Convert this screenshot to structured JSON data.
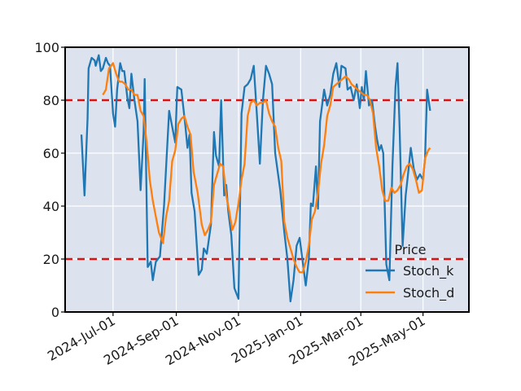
{
  "chart_data": {
    "type": "line",
    "title": "",
    "xlabel": "",
    "ylabel": "",
    "x_range": [
      "2024-05-15",
      "2025-06-15"
    ],
    "ylim": [
      0,
      100
    ],
    "y_ticks": [
      0,
      20,
      40,
      60,
      80,
      100
    ],
    "x_ticks": [
      {
        "date": "2024-07-01",
        "label": "2024-Jul-01"
      },
      {
        "date": "2024-09-01",
        "label": "2024-Sep-01"
      },
      {
        "date": "2024-11-01",
        "label": "2024-Nov-01"
      },
      {
        "date": "2025-01-01",
        "label": "2025-Jan-01"
      },
      {
        "date": "2025-03-01",
        "label": "2025-Mar-01"
      },
      {
        "date": "2025-05-01",
        "label": "2025-May-01"
      }
    ],
    "grid": true,
    "plot_background": "#dce3ee",
    "reference_lines": [
      {
        "y": 80,
        "color": "#e01010",
        "style": "dashed"
      },
      {
        "y": 20,
        "color": "#e01010",
        "style": "dashed"
      }
    ],
    "legend": {
      "title": "Price",
      "placement": "lower-right"
    },
    "series": [
      {
        "name": "Stoch_k",
        "color": "#1f77b4",
        "points": [
          [
            "2024-05-31",
            67
          ],
          [
            "2024-06-03",
            44
          ],
          [
            "2024-06-06",
            73
          ],
          [
            "2024-06-07",
            92
          ],
          [
            "2024-06-10",
            96
          ],
          [
            "2024-06-13",
            95
          ],
          [
            "2024-06-14",
            93
          ],
          [
            "2024-06-17",
            97
          ],
          [
            "2024-06-19",
            91
          ],
          [
            "2024-06-21",
            92
          ],
          [
            "2024-06-24",
            96
          ],
          [
            "2024-06-26",
            94
          ],
          [
            "2024-06-28",
            93
          ],
          [
            "2024-07-01",
            75
          ],
          [
            "2024-07-03",
            70
          ],
          [
            "2024-07-05",
            84
          ],
          [
            "2024-07-08",
            94
          ],
          [
            "2024-07-10",
            91
          ],
          [
            "2024-07-12",
            91
          ],
          [
            "2024-07-15",
            81
          ],
          [
            "2024-07-17",
            77
          ],
          [
            "2024-07-19",
            90
          ],
          [
            "2024-07-22",
            80
          ],
          [
            "2024-07-25",
            72
          ],
          [
            "2024-07-28",
            46
          ],
          [
            "2024-07-31",
            68
          ],
          [
            "2024-08-01",
            88
          ],
          [
            "2024-08-04",
            17
          ],
          [
            "2024-08-07",
            19
          ],
          [
            "2024-08-09",
            12
          ],
          [
            "2024-08-12",
            19
          ],
          [
            "2024-08-16",
            21
          ],
          [
            "2024-08-20",
            40
          ],
          [
            "2024-08-25",
            76
          ],
          [
            "2024-08-28",
            70
          ],
          [
            "2024-08-31",
            64
          ],
          [
            "2024-09-02",
            85
          ],
          [
            "2024-09-06",
            84
          ],
          [
            "2024-09-10",
            70
          ],
          [
            "2024-09-12",
            62
          ],
          [
            "2024-09-14",
            67
          ],
          [
            "2024-09-16",
            45
          ],
          [
            "2024-09-19",
            38
          ],
          [
            "2024-09-23",
            14
          ],
          [
            "2024-09-26",
            16
          ],
          [
            "2024-09-28",
            24
          ],
          [
            "2024-10-01",
            22
          ],
          [
            "2024-10-05",
            33
          ],
          [
            "2024-10-08",
            68
          ],
          [
            "2024-10-10",
            59
          ],
          [
            "2024-10-13",
            55
          ],
          [
            "2024-10-15",
            80
          ],
          [
            "2024-10-18",
            44
          ],
          [
            "2024-10-20",
            48
          ],
          [
            "2024-10-22",
            38
          ],
          [
            "2024-10-25",
            29
          ],
          [
            "2024-10-28",
            9
          ],
          [
            "2024-11-01",
            5
          ],
          [
            "2024-11-04",
            75
          ],
          [
            "2024-11-07",
            85
          ],
          [
            "2024-11-10",
            86
          ],
          [
            "2024-11-13",
            88
          ],
          [
            "2024-11-16",
            93
          ],
          [
            "2024-11-19",
            75
          ],
          [
            "2024-11-22",
            56
          ],
          [
            "2024-11-25",
            80
          ],
          [
            "2024-11-28",
            93
          ],
          [
            "2024-12-01",
            90
          ],
          [
            "2024-12-04",
            86
          ],
          [
            "2024-12-07",
            60
          ],
          [
            "2024-12-12",
            46
          ],
          [
            "2024-12-16",
            30
          ],
          [
            "2024-12-19",
            20
          ],
          [
            "2024-12-22",
            4
          ],
          [
            "2024-12-25",
            12
          ],
          [
            "2024-12-28",
            25
          ],
          [
            "2024-12-31",
            28
          ],
          [
            "2025-01-03",
            19
          ],
          [
            "2025-01-06",
            10
          ],
          [
            "2025-01-09",
            20
          ],
          [
            "2025-01-11",
            41
          ],
          [
            "2025-01-13",
            40
          ],
          [
            "2025-01-16",
            55
          ],
          [
            "2025-01-18",
            39
          ],
          [
            "2025-01-20",
            72
          ],
          [
            "2025-01-24",
            84
          ],
          [
            "2025-01-27",
            78
          ],
          [
            "2025-01-30",
            82
          ],
          [
            "2025-02-02",
            90
          ],
          [
            "2025-02-05",
            94
          ],
          [
            "2025-02-08",
            85
          ],
          [
            "2025-02-10",
            93
          ],
          [
            "2025-02-14",
            92
          ],
          [
            "2025-02-16",
            84
          ],
          [
            "2025-02-19",
            85
          ],
          [
            "2025-02-22",
            80
          ],
          [
            "2025-02-25",
            86
          ],
          [
            "2025-02-28",
            77
          ],
          [
            "2025-03-02",
            85
          ],
          [
            "2025-03-04",
            80
          ],
          [
            "2025-03-06",
            91
          ],
          [
            "2025-03-09",
            78
          ],
          [
            "2025-03-12",
            80
          ],
          [
            "2025-03-15",
            70
          ],
          [
            "2025-03-17",
            65
          ],
          [
            "2025-03-19",
            61
          ],
          [
            "2025-03-21",
            63
          ],
          [
            "2025-03-23",
            60
          ],
          [
            "2025-03-26",
            18
          ],
          [
            "2025-03-29",
            12
          ],
          [
            "2025-04-01",
            55
          ],
          [
            "2025-04-04",
            85
          ],
          [
            "2025-04-06",
            94
          ],
          [
            "2025-04-08",
            70
          ],
          [
            "2025-04-11",
            25
          ],
          [
            "2025-04-14",
            44
          ],
          [
            "2025-04-16",
            51
          ],
          [
            "2025-04-19",
            62
          ],
          [
            "2025-04-22",
            54
          ],
          [
            "2025-04-25",
            50
          ],
          [
            "2025-04-28",
            52
          ],
          [
            "2025-05-01",
            50
          ],
          [
            "2025-05-03",
            58
          ],
          [
            "2025-05-05",
            84
          ],
          [
            "2025-05-08",
            76
          ]
        ]
      },
      {
        "name": "Stoch_d",
        "color": "#ff7f0e",
        "points": [
          [
            "2024-06-21",
            82
          ],
          [
            "2024-06-24",
            84
          ],
          [
            "2024-06-27",
            92
          ],
          [
            "2024-07-01",
            94
          ],
          [
            "2024-07-04",
            90
          ],
          [
            "2024-07-07",
            87
          ],
          [
            "2024-07-10",
            87
          ],
          [
            "2024-07-13",
            86
          ],
          [
            "2024-07-16",
            84
          ],
          [
            "2024-07-19",
            84
          ],
          [
            "2024-07-22",
            82
          ],
          [
            "2024-07-25",
            82
          ],
          [
            "2024-07-28",
            76
          ],
          [
            "2024-07-31",
            74
          ],
          [
            "2024-08-03",
            64
          ],
          [
            "2024-08-06",
            50
          ],
          [
            "2024-08-09",
            42
          ],
          [
            "2024-08-12",
            36
          ],
          [
            "2024-08-15",
            30
          ],
          [
            "2024-08-19",
            26
          ],
          [
            "2024-08-22",
            36
          ],
          [
            "2024-08-25",
            42
          ],
          [
            "2024-08-28",
            57
          ],
          [
            "2024-08-31",
            61
          ],
          [
            "2024-09-03",
            71
          ],
          [
            "2024-09-06",
            73
          ],
          [
            "2024-09-09",
            74
          ],
          [
            "2024-09-12",
            70
          ],
          [
            "2024-09-15",
            67
          ],
          [
            "2024-09-18",
            53
          ],
          [
            "2024-09-22",
            45
          ],
          [
            "2024-09-26",
            33
          ],
          [
            "2024-09-29",
            29
          ],
          [
            "2024-10-02",
            31
          ],
          [
            "2024-10-05",
            34
          ],
          [
            "2024-10-08",
            48
          ],
          [
            "2024-10-11",
            52
          ],
          [
            "2024-10-14",
            56
          ],
          [
            "2024-10-17",
            55
          ],
          [
            "2024-10-20",
            44
          ],
          [
            "2024-10-23",
            38
          ],
          [
            "2024-10-26",
            31
          ],
          [
            "2024-10-29",
            34
          ],
          [
            "2024-11-01",
            41
          ],
          [
            "2024-11-04",
            50
          ],
          [
            "2024-11-07",
            56
          ],
          [
            "2024-11-10",
            74
          ],
          [
            "2024-11-13",
            79
          ],
          [
            "2024-11-16",
            80
          ],
          [
            "2024-11-19",
            78
          ],
          [
            "2024-11-22",
            79
          ],
          [
            "2024-11-25",
            79
          ],
          [
            "2024-11-28",
            80
          ],
          [
            "2024-12-01",
            75
          ],
          [
            "2024-12-04",
            72
          ],
          [
            "2024-12-07",
            70
          ],
          [
            "2024-12-10",
            62
          ],
          [
            "2024-12-13",
            57
          ],
          [
            "2024-12-16",
            34
          ],
          [
            "2024-12-19",
            28
          ],
          [
            "2024-12-22",
            24
          ],
          [
            "2024-12-25",
            20
          ],
          [
            "2024-12-28",
            17
          ],
          [
            "2024-12-31",
            15
          ],
          [
            "2025-01-03",
            15
          ],
          [
            "2025-01-06",
            19
          ],
          [
            "2025-01-09",
            25
          ],
          [
            "2025-01-12",
            35
          ],
          [
            "2025-01-15",
            38
          ],
          [
            "2025-01-18",
            45
          ],
          [
            "2025-01-21",
            56
          ],
          [
            "2025-01-24",
            63
          ],
          [
            "2025-01-27",
            74
          ],
          [
            "2025-01-30",
            78
          ],
          [
            "2025-02-02",
            85
          ],
          [
            "2025-02-05",
            86
          ],
          [
            "2025-02-08",
            87
          ],
          [
            "2025-02-11",
            88
          ],
          [
            "2025-02-14",
            89
          ],
          [
            "2025-02-17",
            88
          ],
          [
            "2025-02-20",
            86
          ],
          [
            "2025-02-23",
            85
          ],
          [
            "2025-02-26",
            84
          ],
          [
            "2025-03-01",
            83
          ],
          [
            "2025-03-04",
            82
          ],
          [
            "2025-03-07",
            82
          ],
          [
            "2025-03-10",
            80
          ],
          [
            "2025-03-13",
            75
          ],
          [
            "2025-03-16",
            62
          ],
          [
            "2025-03-19",
            55
          ],
          [
            "2025-03-22",
            46
          ],
          [
            "2025-03-25",
            42
          ],
          [
            "2025-03-28",
            42
          ],
          [
            "2025-03-31",
            47
          ],
          [
            "2025-04-03",
            45
          ],
          [
            "2025-04-06",
            46
          ],
          [
            "2025-04-09",
            48
          ],
          [
            "2025-04-12",
            52
          ],
          [
            "2025-04-15",
            55
          ],
          [
            "2025-04-18",
            56
          ],
          [
            "2025-04-21",
            54
          ],
          [
            "2025-04-24",
            50
          ],
          [
            "2025-04-27",
            45
          ],
          [
            "2025-04-30",
            46
          ],
          [
            "2025-05-03",
            58
          ],
          [
            "2025-05-06",
            61
          ],
          [
            "2025-05-08",
            62
          ]
        ]
      }
    ]
  }
}
